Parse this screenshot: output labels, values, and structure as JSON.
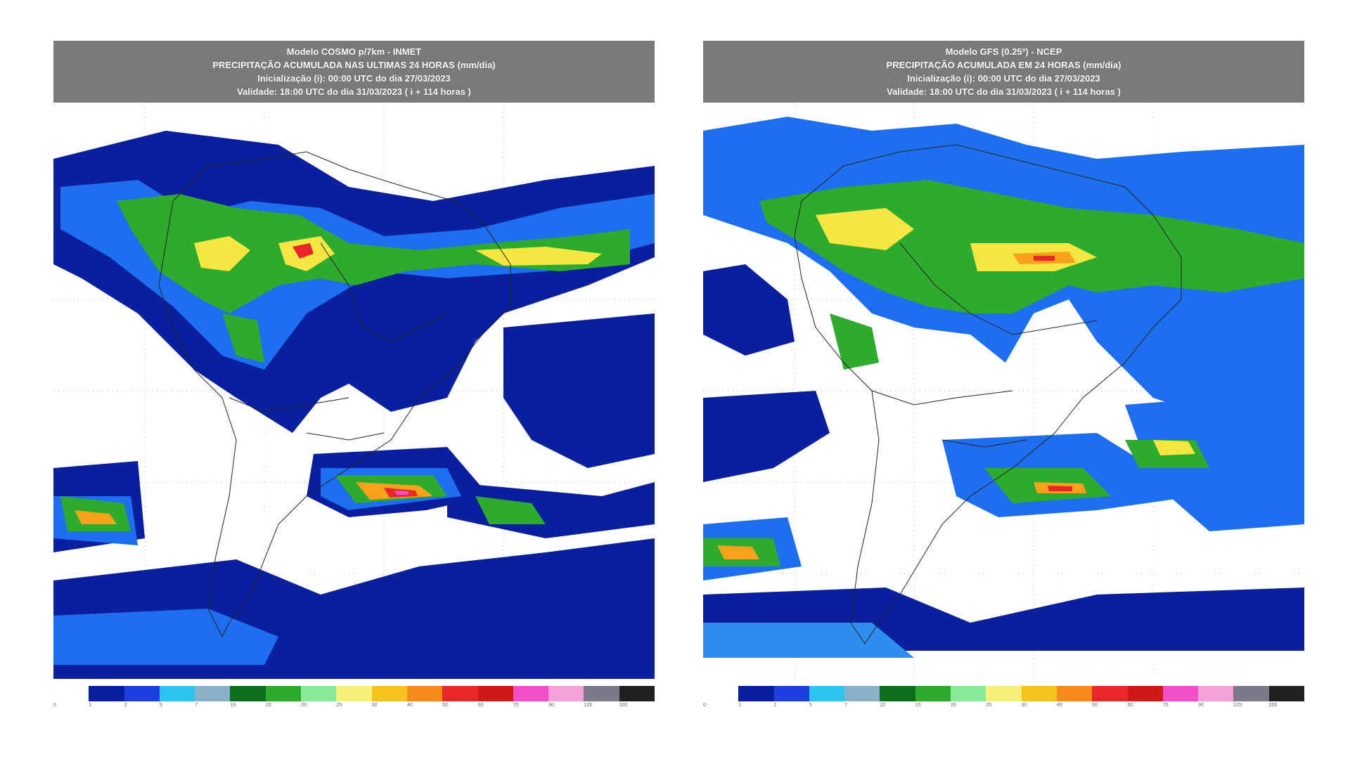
{
  "panels": [
    {
      "id": "left",
      "header": {
        "line1": "Modelo COSMO p/7km - INMET",
        "line2": "PRECIPITAÇÃO ACUMULADA NAS ULTIMAS 24 HORAS (mm/dia)",
        "line3": "Inicialização (i): 00:00 UTC do dia 27/03/2023",
        "line4": "Validade: 18:00 UTC do dia 31/03/2023 ( i + 114 horas )"
      }
    },
    {
      "id": "right",
      "header": {
        "line1": "Modelo GFS (0.25º) - NCEP",
        "line2": "PRECIPITAÇÃO ACUMULADA EM 24 HORAS (mm/dia)",
        "line3": "Inicialização (i): 00:00 UTC do dia 27/03/2023",
        "line4": "Validade: 18:00 UTC do dia 31/03/2023 ( i + 114 horas )"
      }
    }
  ],
  "colors": {
    "ocean_blue": "#0a1f9e",
    "blue": "#1e6ff0",
    "light_blue": "#2ec4f2",
    "green": "#2eaa2e",
    "dark_green": "#0d6e1e",
    "yellow": "#f5e642",
    "orange": "#f7a21a",
    "red": "#e82828",
    "pink": "#f04fc8"
  },
  "scale_colors": [
    "#ffffff",
    "#0a1f9e",
    "#1e3fe0",
    "#2ec4f2",
    "#88b0c8",
    "#0d6e1e",
    "#2eaa2e",
    "#8ae89a",
    "#f5f07a",
    "#f7c21a",
    "#f78a1a",
    "#e82828",
    "#d01818",
    "#f04fc8",
    "#f5a0d8",
    "#7a7a88",
    "#202020"
  ],
  "scale_ticks": [
    "0",
    "1",
    "2",
    "5",
    "7",
    "10",
    "15",
    "20",
    "25",
    "30",
    "40",
    "50",
    "60",
    "75",
    "90",
    "125",
    "200"
  ]
}
